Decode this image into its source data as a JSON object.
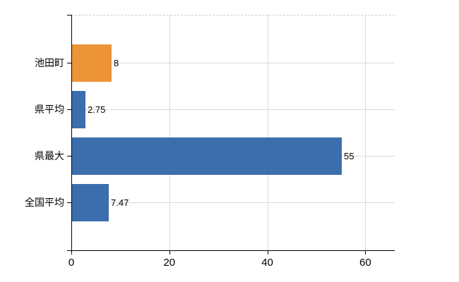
{
  "page": {
    "background": "#ffffff"
  },
  "chart_data": {
    "type": "bar",
    "orientation": "horizontal",
    "title": "",
    "xlabel": "",
    "ylabel": "",
    "categories": [
      "池田町",
      "県平均",
      "県最大",
      "全国平均"
    ],
    "values": [
      8,
      2.75,
      55,
      7.47
    ],
    "value_labels": [
      "8",
      "2.75",
      "55",
      "7.47"
    ],
    "bar_colors": [
      "#ED9338",
      "#3C6DAD",
      "#3C6DAD",
      "#3C6DAD"
    ],
    "xlim": [
      0,
      66
    ],
    "xticks": [
      0,
      20,
      40,
      60
    ],
    "xtick_labels": [
      "0",
      "20",
      "40",
      "60"
    ],
    "grid": true,
    "legend": false,
    "colors": {
      "grid": "#d8dbd8",
      "axis": "#000000",
      "top_border_dashed": "#cdcdcd",
      "text": "#000000",
      "accent_orange": "#ED9338",
      "accent_blue": "#3C6DAD"
    }
  }
}
